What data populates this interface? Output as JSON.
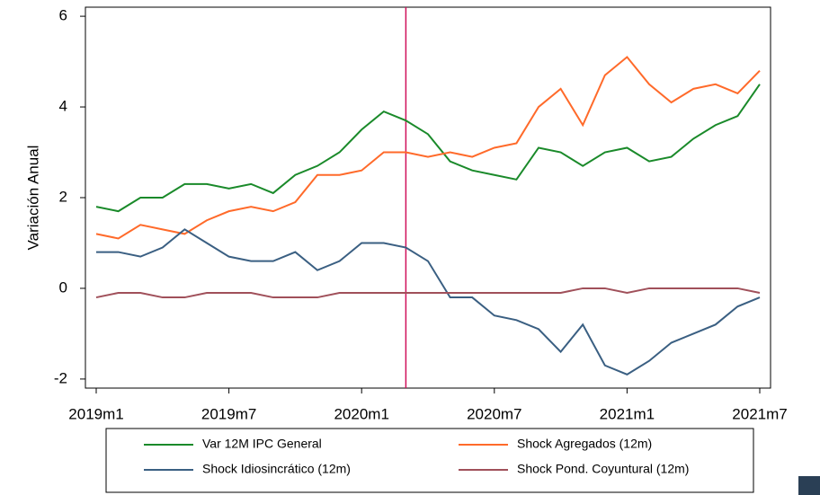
{
  "chart_data": {
    "type": "line",
    "y_label": "Variación Anual",
    "categories": [
      "2019m1",
      null,
      null,
      null,
      null,
      null,
      "2019m7",
      null,
      null,
      null,
      null,
      null,
      "2020m1",
      null,
      null,
      null,
      null,
      null,
      "2020m7",
      null,
      null,
      null,
      null,
      null,
      "2021m1",
      null,
      null,
      null,
      null,
      null,
      "2021m7"
    ],
    "series": [
      {
        "name": "Var 12M IPC General",
        "color": "#1a8a2a",
        "values": [
          1.8,
          1.7,
          2.0,
          2.0,
          2.3,
          2.3,
          2.2,
          2.3,
          2.1,
          2.5,
          2.7,
          3.0,
          3.5,
          3.9,
          3.7,
          3.4,
          2.8,
          2.6,
          2.5,
          2.4,
          3.1,
          3.0,
          2.7,
          3.0,
          3.1,
          2.8,
          2.9,
          3.3,
          3.6,
          3.8,
          4.5
        ]
      },
      {
        "name": "Shock Agregados (12m)",
        "color": "#ff6a2a",
        "values": [
          1.2,
          1.1,
          1.4,
          1.3,
          1.2,
          1.5,
          1.7,
          1.8,
          1.7,
          1.9,
          2.5,
          2.5,
          2.6,
          3.0,
          3.0,
          2.9,
          3.0,
          2.9,
          3.1,
          3.2,
          4.0,
          4.4,
          3.6,
          4.7,
          5.1,
          4.5,
          4.1,
          4.4,
          4.5,
          4.3,
          4.8
        ]
      },
      {
        "name": "Shock Idiosincrático (12m)",
        "color": "#3a5f82",
        "values": [
          0.8,
          0.8,
          0.7,
          0.9,
          1.3,
          1.0,
          0.7,
          0.6,
          0.6,
          0.8,
          0.4,
          0.6,
          1.0,
          1.0,
          0.9,
          0.6,
          -0.2,
          -0.2,
          -0.6,
          -0.7,
          -0.9,
          -1.4,
          -0.8,
          -1.7,
          -1.9,
          -1.6,
          -1.2,
          -1.0,
          -0.8,
          -0.4,
          -0.2
        ]
      },
      {
        "name": "Shock Pond. Coyuntural (12m)",
        "color": "#a0505a",
        "values": [
          -0.2,
          -0.1,
          -0.1,
          -0.2,
          -0.2,
          -0.1,
          -0.1,
          -0.1,
          -0.2,
          -0.2,
          -0.2,
          -0.1,
          -0.1,
          -0.1,
          -0.1,
          -0.1,
          -0.1,
          -0.1,
          -0.1,
          -0.1,
          -0.1,
          -0.1,
          0.0,
          0.0,
          -0.1,
          0.0,
          0.0,
          0.0,
          0.0,
          0.0,
          -0.1
        ]
      }
    ],
    "vline": 14,
    "vline_color": "#d0105a",
    "ylim": [
      -2.2,
      6.2
    ],
    "yticks": [
      -2,
      0,
      2,
      4,
      6
    ],
    "grid": false
  }
}
